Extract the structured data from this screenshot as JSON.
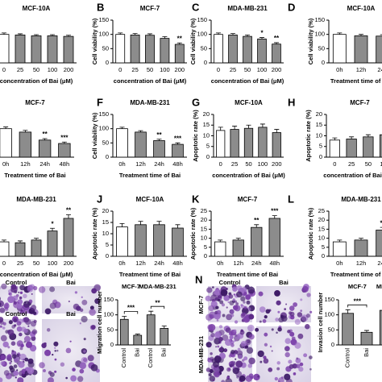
{
  "chart_data": [
    {
      "type": "bar",
      "title": "MCF-10A",
      "xlabel": "concentration of Bai (μM)",
      "categories": [
        "0",
        "25",
        "50",
        "100",
        "200"
      ],
      "values": [
        100,
        98,
        95,
        95,
        93
      ],
      "errors": [
        5,
        4,
        4,
        4,
        4
      ],
      "colors": [
        "#ffffff",
        "#8c8c8c",
        "#8c8c8c",
        "#8c8c8c",
        "#8c8c8c"
      ],
      "ylim": [
        0,
        150
      ]
    },
    {
      "type": "bar",
      "panel": "B",
      "title": "MCF-7",
      "ylabel": "Cell viability (%)",
      "xlabel": "concentration of Bai (μM)",
      "categories": [
        "0",
        "25",
        "50",
        "100",
        "200"
      ],
      "values": [
        100,
        98,
        97,
        86,
        65
      ],
      "errors": [
        5,
        5,
        5,
        6,
        5
      ],
      "colors": [
        "#ffffff",
        "#8c8c8c",
        "#8c8c8c",
        "#8c8c8c",
        "#8c8c8c"
      ],
      "significance": [
        null,
        null,
        null,
        null,
        "**"
      ],
      "ylim": [
        0,
        150
      ],
      "yticks": [
        0,
        50,
        100,
        150
      ]
    },
    {
      "type": "bar",
      "panel": "C",
      "title": "MDA-MB-231",
      "ylabel": "Cell viability (%)",
      "xlabel": "concentration of Bai (μM)",
      "categories": [
        "0",
        "25",
        "50",
        "100",
        "200"
      ],
      "values": [
        100,
        98,
        93,
        84,
        66
      ],
      "errors": [
        5,
        5,
        5,
        5,
        5
      ],
      "colors": [
        "#ffffff",
        "#8c8c8c",
        "#8c8c8c",
        "#8c8c8c",
        "#8c8c8c"
      ],
      "significance": [
        null,
        null,
        null,
        "*",
        "**"
      ],
      "ylim": [
        0,
        150
      ],
      "yticks": [
        0,
        50,
        100,
        150
      ]
    },
    {
      "type": "bar",
      "panel": "D",
      "title": "MCF-10A",
      "ylabel": "Cell viability (%)",
      "xlabel": "Treatment time of Bai",
      "categories": [
        "0h",
        "12h",
        "24h"
      ],
      "values": [
        100,
        95,
        94
      ],
      "errors": [
        5,
        5,
        5
      ],
      "colors": [
        "#ffffff",
        "#8c8c8c",
        "#8c8c8c"
      ],
      "ylim": [
        0,
        150
      ],
      "yticks": [
        0,
        50,
        100,
        150
      ]
    },
    {
      "type": "bar",
      "title": "MCF-7",
      "xlabel": "Treatment time of Bai",
      "categories": [
        "0h",
        "12h",
        "24h",
        "48h"
      ],
      "values": [
        100,
        88,
        60,
        48
      ],
      "errors": [
        6,
        6,
        5,
        5
      ],
      "colors": [
        "#ffffff",
        "#8c8c8c",
        "#8c8c8c",
        "#8c8c8c"
      ],
      "significance": [
        null,
        null,
        "**",
        "***"
      ],
      "ylim": [
        0,
        150
      ]
    },
    {
      "type": "bar",
      "panel": "F",
      "title": "MDA-MB-231",
      "ylabel": "Cell viability (%)",
      "xlabel": "Treatment time of Bai",
      "categories": [
        "0h",
        "12h",
        "24h",
        "48h"
      ],
      "values": [
        100,
        88,
        58,
        45
      ],
      "errors": [
        5,
        5,
        5,
        5
      ],
      "colors": [
        "#ffffff",
        "#8c8c8c",
        "#8c8c8c",
        "#8c8c8c"
      ],
      "significance": [
        null,
        null,
        "**",
        "***"
      ],
      "ylim": [
        0,
        150
      ],
      "yticks": [
        0,
        50,
        100,
        150
      ]
    },
    {
      "type": "bar",
      "panel": "G",
      "title": "MCF-10A",
      "ylabel": "Apoptotic rate (%)",
      "xlabel": "concentration of Bai (μM)",
      "categories": [
        "0",
        "25",
        "50",
        "100",
        "200"
      ],
      "values": [
        12.5,
        13,
        13.5,
        14,
        11.5
      ],
      "errors": [
        1.5,
        1.5,
        1.5,
        1.5,
        1.5
      ],
      "colors": [
        "#ffffff",
        "#8c8c8c",
        "#8c8c8c",
        "#8c8c8c",
        "#8c8c8c"
      ],
      "ylim": [
        0,
        20
      ],
      "yticks": [
        0,
        5,
        10,
        15,
        20
      ]
    },
    {
      "type": "bar",
      "panel": "H",
      "title": "MCF-7",
      "ylabel": "Apoptotic rate (%)",
      "xlabel": "concentration of Bai (μM)",
      "categories": [
        "0",
        "25",
        "50",
        "100"
      ],
      "values": [
        8,
        8.5,
        9.5,
        10.5
      ],
      "errors": [
        1,
        1,
        1,
        1
      ],
      "colors": [
        "#ffffff",
        "#8c8c8c",
        "#8c8c8c",
        "#8c8c8c"
      ],
      "ylim": [
        0,
        20
      ],
      "yticks": [
        0,
        5,
        10,
        15,
        20
      ]
    },
    {
      "type": "bar",
      "title": "MDA-MB-231",
      "xlabel": "concentration of Bai (μM)",
      "categories": [
        "0",
        "25",
        "50",
        "100",
        "200"
      ],
      "values": [
        8,
        7.5,
        9,
        14,
        21
      ],
      "errors": [
        1,
        1,
        1,
        1.5,
        2
      ],
      "colors": [
        "#ffffff",
        "#8c8c8c",
        "#8c8c8c",
        "#8c8c8c",
        "#8c8c8c"
      ],
      "significance": [
        null,
        null,
        null,
        "*",
        "**"
      ],
      "ylim": [
        0,
        25
      ]
    },
    {
      "type": "bar",
      "panel": "J",
      "title": "MCF-10A",
      "ylabel": "Apoptotic rate (%)",
      "xlabel": "Treatment time of Bai",
      "categories": [
        "0h",
        "12h",
        "24h",
        "48h"
      ],
      "values": [
        13,
        14,
        14,
        12.5
      ],
      "errors": [
        1.5,
        1.5,
        1.5,
        1.5
      ],
      "colors": [
        "#ffffff",
        "#8c8c8c",
        "#8c8c8c",
        "#8c8c8c"
      ],
      "ylim": [
        0,
        20
      ],
      "yticks": [
        0,
        5,
        10,
        15,
        20
      ]
    },
    {
      "type": "bar",
      "panel": "K",
      "title": "MCF-7",
      "ylabel": "Apoptotic rate (%)",
      "xlabel": "Treatment time of Bai",
      "categories": [
        "0h",
        "12h",
        "24h",
        "48h"
      ],
      "values": [
        8,
        9,
        16,
        21
      ],
      "errors": [
        1,
        1,
        1.5,
        1.5
      ],
      "colors": [
        "#ffffff",
        "#8c8c8c",
        "#8c8c8c",
        "#8c8c8c"
      ],
      "significance": [
        null,
        null,
        "**",
        "***"
      ],
      "ylim": [
        0,
        25
      ],
      "yticks": [
        0,
        5,
        10,
        15,
        20,
        25
      ]
    },
    {
      "type": "bar",
      "panel": "L",
      "title": "MDA-MB-231",
      "ylabel": "Apoptotic rate (%)",
      "xlabel": "Treatment time of Bai",
      "categories": [
        "0h",
        "12h",
        "24h"
      ],
      "values": [
        8,
        9,
        14.5
      ],
      "errors": [
        1,
        1,
        1.5
      ],
      "colors": [
        "#ffffff",
        "#8c8c8c",
        "#8c8c8c"
      ],
      "significance": [
        null,
        null,
        "**"
      ],
      "ylim": [
        0,
        25
      ],
      "yticks": [
        0,
        5,
        10,
        15,
        20,
        25
      ]
    },
    {
      "type": "bar",
      "ylabel": "Migration cell number",
      "categories": [
        "Control",
        "Bai",
        "Control",
        "Bai"
      ],
      "values": [
        85,
        32,
        100,
        55
      ],
      "errors": [
        10,
        4,
        12,
        8
      ],
      "colors": [
        "#8c8c8c",
        "#8c8c8c",
        "#8c8c8c",
        "#8c8c8c"
      ],
      "group_labels": [
        "MCF-7",
        "MDA-MB-231"
      ],
      "brackets": [
        "***",
        "**"
      ],
      "ylim": [
        0,
        150
      ],
      "yticks": [
        0,
        50,
        100,
        150
      ]
    },
    {
      "type": "bar",
      "panel": "N",
      "ylabel": "Invasion cell number",
      "categories": [
        "Control",
        "Bai",
        "Control"
      ],
      "values": [
        105,
        42,
        115
      ],
      "errors": [
        12,
        6,
        12
      ],
      "colors": [
        "#8c8c8c",
        "#8c8c8c",
        "#8c8c8c"
      ],
      "group_labels": [
        "MCF-7",
        "MDA-MB-231"
      ],
      "brackets": [
        "***"
      ],
      "ylim": [
        0,
        150
      ],
      "yticks": [
        0,
        50,
        100,
        150
      ]
    }
  ],
  "images": {
    "m": {
      "labels": [
        "Control",
        "Bai",
        "Control",
        "Bai"
      ]
    },
    "n": {
      "columns": [
        "Control",
        "Bai"
      ],
      "rows": [
        "MCF-7",
        "MDA-MB-231"
      ]
    }
  }
}
